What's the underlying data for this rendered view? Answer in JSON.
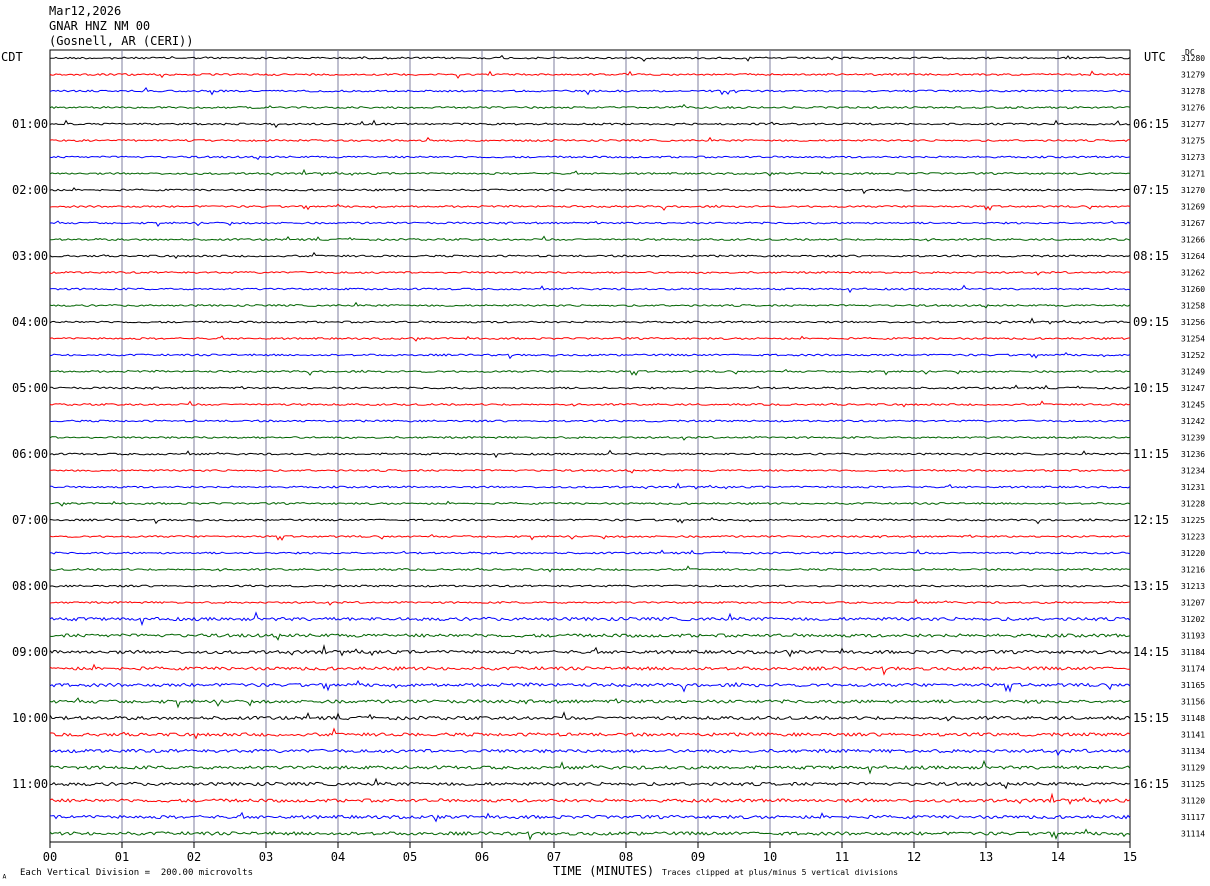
{
  "header": {
    "line1": "Mar12,2026",
    "line2": "GNAR HNZ NM 00",
    "line3": "(Gosnell, AR (CERI))"
  },
  "left_label": "CDT",
  "right_label": "UTC",
  "dc_label": "DC",
  "footer": {
    "scale": "Each Vertical Division =  200.00 microvolts",
    "xlabel": "TIME (MINUTES)",
    "clip": "Traces clipped at plus/minus 5 vertical divisions",
    "corner": "A"
  },
  "colors": {
    "cycle": [
      "#000000",
      "#ff0000",
      "#0000ff",
      "#006400"
    ],
    "grid": "#7f7f9f"
  },
  "chart_data": {
    "type": "line",
    "title": "",
    "xlabel": "TIME (MINUTES)",
    "xlim": [
      0,
      15
    ],
    "x_ticks": [
      "00",
      "01",
      "02",
      "03",
      "04",
      "05",
      "06",
      "07",
      "08",
      "09",
      "10",
      "11",
      "12",
      "13",
      "14",
      "15"
    ],
    "y_labels_left": [
      "01:00",
      "02:00",
      "03:00",
      "04:00",
      "05:00",
      "06:00",
      "07:00",
      "08:00",
      "09:00",
      "10:00",
      "11:00"
    ],
    "y_labels_right": [
      "06:15",
      "07:15",
      "08:15",
      "09:15",
      "10:15",
      "11:15",
      "12:15",
      "13:15",
      "14:15",
      "15:15",
      "16:15"
    ],
    "label_every": 4,
    "label_start_row": 4,
    "dc_values": [
      "31280",
      "31279",
      "31278",
      "31276",
      "31277",
      "31275",
      "31273",
      "31271",
      "31270",
      "31269",
      "31267",
      "31266",
      "31264",
      "31262",
      "31260",
      "31258",
      "31256",
      "31254",
      "31252",
      "31249",
      "31247",
      "31245",
      "31242",
      "31239",
      "31236",
      "31234",
      "31231",
      "31228",
      "31225",
      "31223",
      "31220",
      "31216",
      "31213",
      "31207",
      "31202",
      "31193",
      "31184",
      "31174",
      "31165",
      "31156",
      "31148",
      "31141",
      "31134",
      "31129",
      "31125",
      "31120",
      "31117",
      "31114"
    ],
    "grid": true
  }
}
